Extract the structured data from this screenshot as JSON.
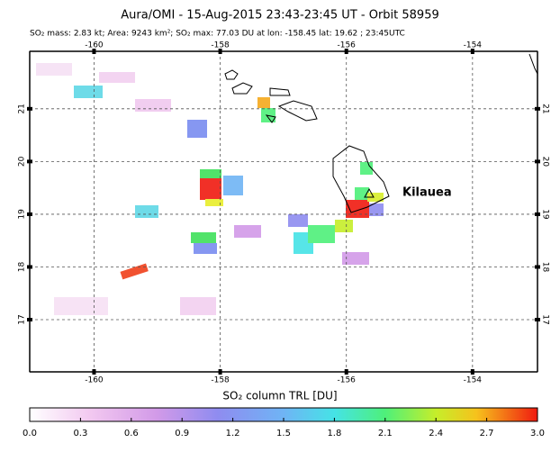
{
  "title": "Aura/OMI - 15-Aug-2015 23:43-23:45 UT - Orbit 58959",
  "subtitle": "SO₂ mass: 2.83 kt; Area: 9243 km²; SO₂ max: 77.03 DU at lon: -158.45 lat: 19.62 ; 23:45UTC",
  "map": {
    "xlim": [
      -161.02,
      -152.97
    ],
    "ylim": [
      16.01,
      22.09
    ],
    "xticks": [
      -160,
      -158,
      -156,
      -154
    ],
    "yticks": [
      17,
      18,
      19,
      20,
      21
    ],
    "annotation": "Kilauea"
  },
  "colorbar": {
    "label": "SO₂ column TRL [DU]",
    "lim": [
      0,
      3
    ],
    "ticks": [
      {
        "value": 0,
        "label": "0.0"
      },
      0.3,
      0.6,
      0.9,
      1.2,
      1.5,
      1.8,
      2.1,
      2.4,
      2.7,
      {
        "value": 3,
        "label": "3.0"
      }
    ]
  }
}
